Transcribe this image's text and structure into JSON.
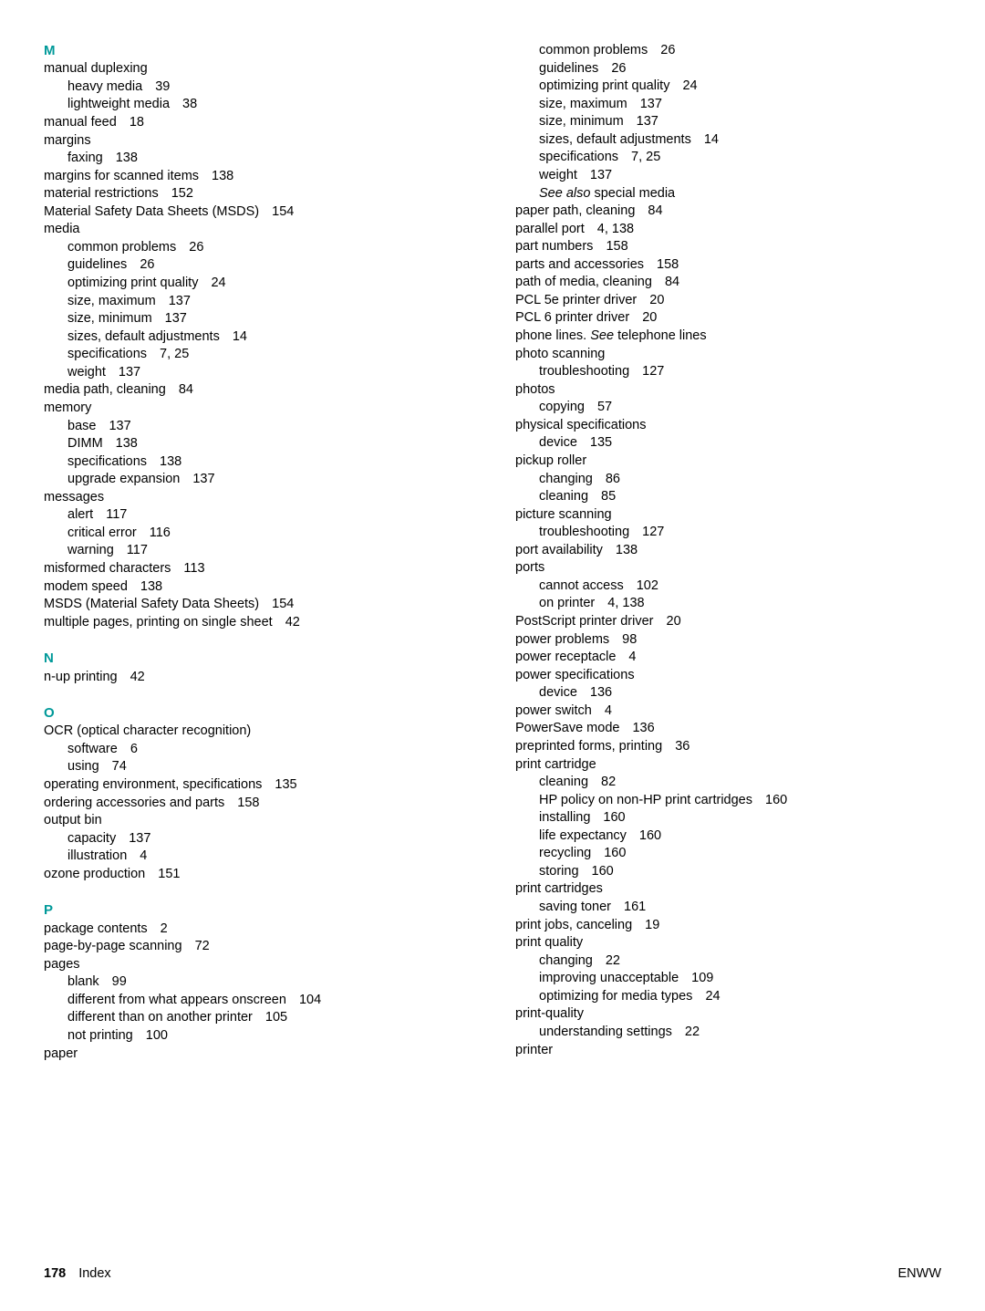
{
  "col1": [
    {
      "type": "letter",
      "text": "M",
      "first": true
    },
    {
      "type": "entry",
      "text": "manual duplexing"
    },
    {
      "type": "sub",
      "text": "heavy media",
      "pg": "39"
    },
    {
      "type": "sub",
      "text": "lightweight media",
      "pg": "38"
    },
    {
      "type": "entry",
      "text": "manual feed",
      "pg": "18"
    },
    {
      "type": "entry",
      "text": "margins"
    },
    {
      "type": "sub",
      "text": "faxing",
      "pg": "138"
    },
    {
      "type": "entry",
      "text": "margins for scanned items",
      "pg": "138"
    },
    {
      "type": "entry",
      "text": "material restrictions",
      "pg": "152"
    },
    {
      "type": "entry",
      "text": "Material Safety Data Sheets (MSDS)",
      "pg": "154"
    },
    {
      "type": "entry",
      "text": "media"
    },
    {
      "type": "sub",
      "text": "common problems",
      "pg": "26"
    },
    {
      "type": "sub",
      "text": "guidelines",
      "pg": "26"
    },
    {
      "type": "sub",
      "text": "optimizing print quality",
      "pg": "24"
    },
    {
      "type": "sub",
      "text": "size, maximum",
      "pg": "137"
    },
    {
      "type": "sub",
      "text": "size, minimum",
      "pg": "137"
    },
    {
      "type": "sub",
      "text": "sizes, default adjustments",
      "pg": "14"
    },
    {
      "type": "sub",
      "text": "specifications",
      "pg": "7, 25"
    },
    {
      "type": "sub",
      "text": "weight",
      "pg": "137"
    },
    {
      "type": "entry",
      "text": "media path, cleaning",
      "pg": "84"
    },
    {
      "type": "entry",
      "text": "memory"
    },
    {
      "type": "sub",
      "text": "base",
      "pg": "137"
    },
    {
      "type": "sub",
      "text": "DIMM",
      "pg": "138"
    },
    {
      "type": "sub",
      "text": "specifications",
      "pg": "138"
    },
    {
      "type": "sub",
      "text": "upgrade expansion",
      "pg": "137"
    },
    {
      "type": "entry",
      "text": "messages"
    },
    {
      "type": "sub",
      "text": "alert",
      "pg": "117"
    },
    {
      "type": "sub",
      "text": "critical error",
      "pg": "116"
    },
    {
      "type": "sub",
      "text": "warning",
      "pg": "117"
    },
    {
      "type": "entry",
      "text": "misformed characters",
      "pg": "113"
    },
    {
      "type": "entry",
      "text": "modem speed",
      "pg": "138"
    },
    {
      "type": "entry",
      "text": "MSDS (Material Safety Data Sheets)",
      "pg": "154"
    },
    {
      "type": "entry",
      "text": "multiple pages, printing on single sheet",
      "pg": "42"
    },
    {
      "type": "gap"
    },
    {
      "type": "letter",
      "text": "N"
    },
    {
      "type": "entry",
      "text": "n-up printing",
      "pg": "42"
    },
    {
      "type": "gap"
    },
    {
      "type": "letter",
      "text": "O"
    },
    {
      "type": "entry",
      "text": "OCR (optical character recognition)"
    },
    {
      "type": "sub",
      "text": "software",
      "pg": "6"
    },
    {
      "type": "sub",
      "text": "using",
      "pg": "74"
    },
    {
      "type": "entry",
      "text": "operating environment, specifications",
      "pg": "135"
    },
    {
      "type": "entry",
      "text": "ordering accessories and parts",
      "pg": "158"
    },
    {
      "type": "entry",
      "text": "output bin"
    },
    {
      "type": "sub",
      "text": "capacity",
      "pg": "137"
    },
    {
      "type": "sub",
      "text": "illustration",
      "pg": "4"
    },
    {
      "type": "entry",
      "text": "ozone production",
      "pg": "151"
    },
    {
      "type": "gap"
    },
    {
      "type": "letter",
      "text": "P"
    },
    {
      "type": "entry",
      "text": "package contents",
      "pg": "2"
    },
    {
      "type": "entry",
      "text": "page-by-page scanning",
      "pg": "72"
    },
    {
      "type": "entry",
      "text": "pages"
    },
    {
      "type": "sub",
      "text": "blank",
      "pg": "99"
    },
    {
      "type": "sub",
      "text": "different from what appears onscreen",
      "pg": "104"
    },
    {
      "type": "sub",
      "text": "different than on another printer",
      "pg": "105"
    },
    {
      "type": "sub",
      "text": "not printing",
      "pg": "100"
    },
    {
      "type": "entry",
      "text": "paper"
    }
  ],
  "col2": [
    {
      "type": "sub",
      "text": "common problems",
      "pg": "26"
    },
    {
      "type": "sub",
      "text": "guidelines",
      "pg": "26"
    },
    {
      "type": "sub",
      "text": "optimizing print quality",
      "pg": "24"
    },
    {
      "type": "sub",
      "text": "size, maximum",
      "pg": "137"
    },
    {
      "type": "sub",
      "text": "size, minimum",
      "pg": "137"
    },
    {
      "type": "sub",
      "text": "sizes, default adjustments",
      "pg": "14"
    },
    {
      "type": "sub",
      "text": "specifications",
      "pg": "7, 25"
    },
    {
      "type": "sub",
      "text": "weight",
      "pg": "137"
    },
    {
      "type": "sub-italic",
      "pre": "See also",
      "text": " special media"
    },
    {
      "type": "entry",
      "text": "paper path, cleaning",
      "pg": "84"
    },
    {
      "type": "entry",
      "text": "parallel port",
      "pg": "4, 138"
    },
    {
      "type": "entry",
      "text": "part numbers",
      "pg": "158"
    },
    {
      "type": "entry",
      "text": "parts and accessories",
      "pg": "158"
    },
    {
      "type": "entry",
      "text": "path of media, cleaning",
      "pg": "84"
    },
    {
      "type": "entry",
      "text": "PCL 5e printer driver",
      "pg": "20"
    },
    {
      "type": "entry",
      "text": "PCL 6 printer driver",
      "pg": "20"
    },
    {
      "type": "entry-italic",
      "text": "phone lines. ",
      "italic": "See",
      "post": " telephone lines"
    },
    {
      "type": "entry",
      "text": "photo scanning"
    },
    {
      "type": "sub",
      "text": "troubleshooting",
      "pg": "127"
    },
    {
      "type": "entry",
      "text": "photos"
    },
    {
      "type": "sub",
      "text": "copying",
      "pg": "57"
    },
    {
      "type": "entry",
      "text": "physical specifications"
    },
    {
      "type": "sub",
      "text": "device",
      "pg": "135"
    },
    {
      "type": "entry",
      "text": "pickup roller"
    },
    {
      "type": "sub",
      "text": "changing",
      "pg": "86"
    },
    {
      "type": "sub",
      "text": "cleaning",
      "pg": "85"
    },
    {
      "type": "entry",
      "text": "picture scanning"
    },
    {
      "type": "sub",
      "text": "troubleshooting",
      "pg": "127"
    },
    {
      "type": "entry",
      "text": "port availability",
      "pg": "138"
    },
    {
      "type": "entry",
      "text": "ports"
    },
    {
      "type": "sub",
      "text": "cannot access",
      "pg": "102"
    },
    {
      "type": "sub",
      "text": "on printer",
      "pg": "4, 138"
    },
    {
      "type": "entry",
      "text": "PostScript printer driver",
      "pg": "20"
    },
    {
      "type": "entry",
      "text": "power problems",
      "pg": "98"
    },
    {
      "type": "entry",
      "text": "power receptacle",
      "pg": "4"
    },
    {
      "type": "entry",
      "text": "power specifications"
    },
    {
      "type": "sub",
      "text": "device",
      "pg": "136"
    },
    {
      "type": "entry",
      "text": "power switch",
      "pg": "4"
    },
    {
      "type": "entry",
      "text": "PowerSave mode",
      "pg": "136"
    },
    {
      "type": "entry",
      "text": "preprinted forms, printing",
      "pg": "36"
    },
    {
      "type": "entry",
      "text": "print cartridge"
    },
    {
      "type": "sub",
      "text": "cleaning",
      "pg": "82"
    },
    {
      "type": "sub",
      "text": "HP policy on non-HP print cartridges",
      "pg": "160"
    },
    {
      "type": "sub",
      "text": "installing",
      "pg": "160"
    },
    {
      "type": "sub",
      "text": "life expectancy",
      "pg": "160"
    },
    {
      "type": "sub",
      "text": "recycling",
      "pg": "160"
    },
    {
      "type": "sub",
      "text": "storing",
      "pg": "160"
    },
    {
      "type": "entry",
      "text": "print cartridges"
    },
    {
      "type": "sub",
      "text": "saving toner",
      "pg": "161"
    },
    {
      "type": "entry",
      "text": "print jobs, canceling",
      "pg": "19"
    },
    {
      "type": "entry",
      "text": "print quality"
    },
    {
      "type": "sub",
      "text": "changing",
      "pg": "22"
    },
    {
      "type": "sub",
      "text": "improving unacceptable",
      "pg": "109"
    },
    {
      "type": "sub",
      "text": "optimizing for media types",
      "pg": "24"
    },
    {
      "type": "entry",
      "text": "print-quality"
    },
    {
      "type": "sub",
      "text": "understanding settings",
      "pg": "22"
    },
    {
      "type": "entry",
      "text": "printer"
    }
  ],
  "footer": {
    "pagenum": "178",
    "section": "Index",
    "right": "ENWW"
  }
}
